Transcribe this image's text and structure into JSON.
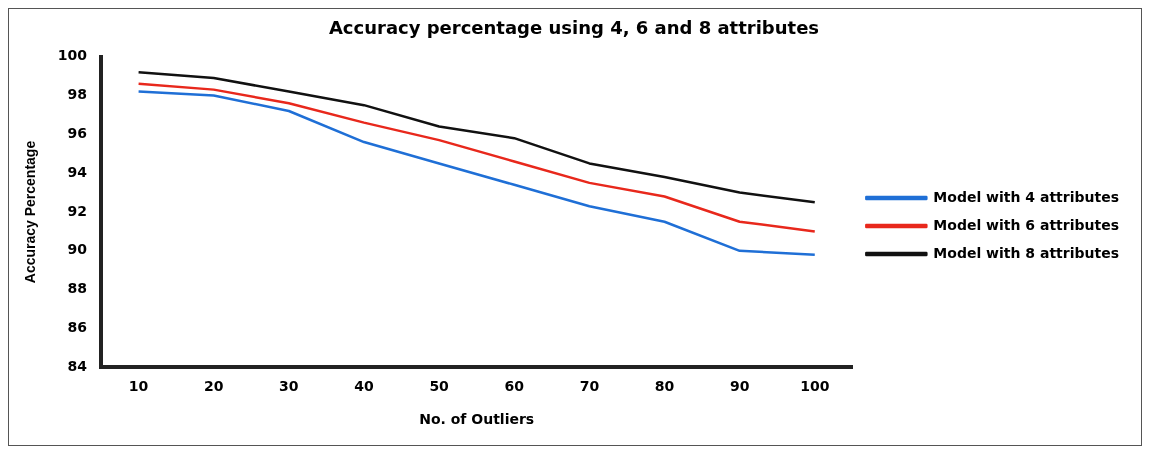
{
  "chart_data": {
    "type": "line",
    "title": "Accuracy percentage using 4, 6 and 8 attributes",
    "xlabel": "No. of Outliers",
    "ylabel": "Accuracy Percentage",
    "categories": [
      "10",
      "20",
      "30",
      "40",
      "50",
      "60",
      "70",
      "80",
      "90",
      "100"
    ],
    "series": [
      {
        "name": "Model with 4 attributes",
        "color": "#1f6fd6",
        "values": [
          98.2,
          98.0,
          97.2,
          95.6,
          94.5,
          93.4,
          92.3,
          91.5,
          90.0,
          89.8
        ]
      },
      {
        "name": "Model with 6 attributes",
        "color": "#e8281c",
        "values": [
          98.6,
          98.3,
          97.6,
          96.6,
          95.7,
          94.6,
          93.5,
          92.8,
          91.5,
          91.0
        ]
      },
      {
        "name": "Model with 8 attributes",
        "color": "#111111",
        "values": [
          99.2,
          98.9,
          98.2,
          97.5,
          96.4,
          95.8,
          94.5,
          93.8,
          93.0,
          92.5
        ]
      }
    ],
    "ylim": [
      84,
      100
    ],
    "yticks": [
      84,
      86,
      88,
      90,
      92,
      94,
      96,
      98,
      100
    ],
    "grid": false,
    "legend": "right",
    "marker": "none",
    "line_style": "solid"
  }
}
